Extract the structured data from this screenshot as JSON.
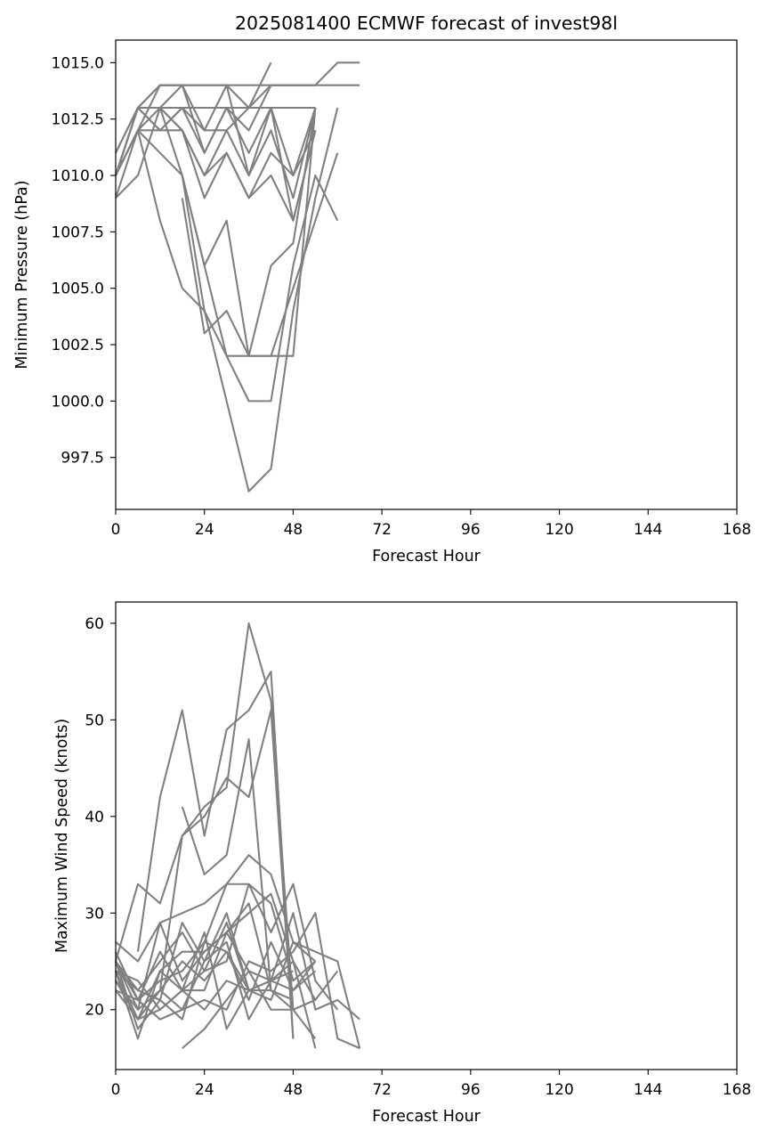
{
  "chart_data": [
    {
      "type": "line",
      "title": "2025081400 ECMWF forecast of invest98l",
      "xlabel": "Forecast Hour",
      "ylabel": "Minimum Pressure (hPa)",
      "xlim": [
        0,
        168
      ],
      "ylim": [
        995.2,
        1016.0
      ],
      "xticks": [
        0,
        24,
        48,
        72,
        96,
        120,
        144,
        168
      ],
      "xtick_labels": [
        "0",
        "24",
        "48",
        "72",
        "96",
        "120",
        "144",
        "168"
      ],
      "yticks": [
        997.5,
        1000.0,
        1002.5,
        1005.0,
        1007.5,
        1010.0,
        1012.5,
        1015.0
      ],
      "ytick_labels": [
        "997.5",
        "1000.0",
        "1002.5",
        "1005.0",
        "1007.5",
        "1010.0",
        "1012.5",
        "1015.0"
      ],
      "grid": false,
      "line_color": "#808080",
      "series": [
        {
          "x": [
            0,
            6,
            12,
            18,
            24,
            30,
            36,
            42,
            48,
            54
          ],
          "y": [
            1010,
            1013,
            1014,
            1014,
            1011,
            1013,
            1012,
            1014,
            1014,
            1014
          ]
        },
        {
          "x": [
            0,
            6,
            12,
            18,
            24,
            30,
            36,
            42,
            48,
            54,
            60,
            66
          ],
          "y": [
            1010,
            1013,
            1014,
            1014,
            1014,
            1014,
            1014,
            1014,
            1014,
            1014,
            1015,
            1015
          ]
        },
        {
          "x": [
            0,
            6,
            12,
            18,
            24,
            30,
            36,
            42,
            48,
            54,
            60,
            66
          ],
          "y": [
            1010,
            1012,
            1014,
            1014,
            1014,
            1014,
            1013,
            1014,
            1014,
            1014,
            1014,
            1014
          ]
        },
        {
          "x": [
            0,
            6,
            12,
            18,
            24,
            30,
            36,
            42,
            48,
            54
          ],
          "y": [
            1010,
            1013,
            1013,
            1014,
            1012,
            1014,
            1010,
            1013,
            1010,
            1013
          ]
        },
        {
          "x": [
            0,
            6,
            12,
            18,
            24,
            30,
            36,
            42,
            48,
            54
          ],
          "y": [
            1010,
            1013,
            1013,
            1013,
            1013,
            1013,
            1013,
            1013,
            1013,
            1013
          ]
        },
        {
          "x": [
            0,
            6,
            12,
            18,
            24,
            30,
            36,
            42,
            48,
            54
          ],
          "y": [
            1010,
            1012,
            1012,
            1012,
            1010,
            1012,
            1010,
            1012,
            1009,
            1013
          ]
        },
        {
          "x": [
            0,
            6,
            12,
            18,
            24,
            30,
            36,
            42,
            48,
            54
          ],
          "y": [
            1010,
            1013,
            1012,
            1013,
            1011,
            1013,
            1011,
            1013,
            1008,
            1012
          ]
        },
        {
          "x": [
            0,
            6,
            12,
            18,
            24,
            30,
            36,
            42,
            48,
            54
          ],
          "y": [
            1010,
            1012,
            1013,
            1012,
            1010,
            1011,
            1009,
            1011,
            1010,
            1012
          ]
        },
        {
          "x": [
            0,
            6,
            12,
            18,
            24,
            30,
            36,
            42,
            48,
            54
          ],
          "y": [
            1011,
            1013,
            1013,
            1012,
            1009,
            1011,
            1009,
            1010,
            1008,
            1012
          ]
        },
        {
          "x": [
            0,
            6,
            12,
            18,
            24,
            30,
            36,
            42
          ],
          "y": [
            1011,
            1013,
            1012,
            1013,
            1012,
            1012,
            1013,
            1015
          ]
        },
        {
          "x": [
            0,
            6,
            12,
            18,
            24,
            30,
            36,
            42,
            48,
            54,
            60
          ],
          "y": [
            1009,
            1010,
            1013,
            1010,
            1004,
            1002,
            1000,
            1000,
            1006,
            1010,
            1008
          ]
        },
        {
          "x": [
            0,
            6,
            12,
            18,
            24,
            30,
            36,
            42,
            48,
            54,
            60
          ],
          "y": [
            1009,
            1012,
            1008,
            1005,
            1004,
            1000,
            996,
            997,
            1004,
            1009,
            1013
          ]
        },
        {
          "x": [
            0,
            6,
            12,
            18,
            24,
            30,
            36,
            42,
            48,
            54,
            60
          ],
          "y": [
            1010,
            1012,
            1011,
            1010,
            1006,
            1002,
            1002,
            1002,
            1005,
            1008,
            1011
          ]
        },
        {
          "x": [
            18,
            24,
            30,
            36,
            42,
            48,
            54
          ],
          "y": [
            1009,
            1003,
            1004,
            1002,
            1006,
            1007,
            1013
          ]
        },
        {
          "x": [
            18,
            24,
            30,
            36,
            42,
            48,
            54
          ],
          "y": [
            1010,
            1006,
            1008,
            1002,
            1002,
            1002,
            1013
          ]
        }
      ]
    },
    {
      "type": "line",
      "title": "",
      "xlabel": "Forecast Hour",
      "ylabel": "Maximum Wind Speed (knots)",
      "xlim": [
        0,
        168
      ],
      "ylim": [
        13.8,
        62.2
      ],
      "xticks": [
        0,
        24,
        48,
        72,
        96,
        120,
        144,
        168
      ],
      "xtick_labels": [
        "0",
        "24",
        "48",
        "72",
        "96",
        "120",
        "144",
        "168"
      ],
      "yticks": [
        20,
        30,
        40,
        50,
        60
      ],
      "ytick_labels": [
        "20",
        "30",
        "40",
        "50",
        "60"
      ],
      "grid": false,
      "line_color": "#808080",
      "series": [
        {
          "x": [
            6,
            12,
            18,
            24,
            30,
            36,
            42,
            48
          ],
          "y": [
            26,
            42,
            51,
            38,
            49,
            51,
            55,
            17
          ]
        },
        {
          "x": [
            0,
            6,
            12,
            18,
            24,
            30,
            36,
            42,
            48
          ],
          "y": [
            24,
            19,
            22,
            38,
            41,
            43,
            60,
            52,
            20
          ]
        },
        {
          "x": [
            0,
            6,
            12,
            18,
            24,
            30,
            36,
            42,
            48
          ],
          "y": [
            25,
            33,
            31,
            38,
            40,
            44,
            42,
            51,
            17
          ]
        },
        {
          "x": [
            18,
            24,
            30,
            36,
            42,
            48
          ],
          "y": [
            41,
            34,
            36,
            48,
            22,
            21
          ]
        },
        {
          "x": [
            0,
            6,
            12,
            18,
            24,
            30,
            36,
            42,
            48,
            54,
            60
          ],
          "y": [
            27,
            25,
            29,
            30,
            31,
            33,
            33,
            28,
            33,
            23,
            20
          ]
        },
        {
          "x": [
            0,
            6,
            12,
            18,
            24,
            30,
            36,
            42,
            48,
            54,
            60,
            66
          ],
          "y": [
            25,
            21,
            23,
            24,
            27,
            33,
            36,
            34,
            27,
            26,
            25,
            16
          ]
        },
        {
          "x": [
            0,
            6,
            12,
            18,
            24,
            30,
            36,
            42,
            48,
            54,
            60
          ],
          "y": [
            23,
            20,
            29,
            23,
            26,
            28,
            30,
            32,
            25,
            21,
            24
          ]
        },
        {
          "x": [
            0,
            6,
            12,
            18,
            24,
            30,
            36,
            42
          ],
          "y": [
            22,
            19,
            24,
            26,
            26,
            28,
            31,
            22
          ]
        },
        {
          "x": [
            0,
            6,
            12,
            18,
            24,
            30,
            36,
            42,
            48,
            54
          ],
          "y": [
            25,
            22,
            25,
            28,
            24,
            25,
            33,
            31,
            23,
            25
          ]
        },
        {
          "x": [
            0,
            6,
            12,
            18,
            24,
            30,
            36
          ],
          "y": [
            24,
            17,
            24,
            22,
            28,
            18,
            22
          ]
        },
        {
          "x": [
            0,
            6,
            12,
            18,
            24,
            30,
            36,
            42,
            48,
            54,
            60,
            66
          ],
          "y": [
            23,
            19,
            20,
            22,
            24,
            29,
            22,
            23,
            30,
            20,
            21,
            19
          ]
        },
        {
          "x": [
            0,
            6,
            12,
            18,
            24,
            30,
            36,
            42,
            48,
            54
          ],
          "y": [
            25,
            18,
            21,
            19,
            27,
            26,
            21,
            27,
            22,
            25
          ]
        },
        {
          "x": [
            0,
            6,
            12,
            18,
            24,
            30,
            36,
            42,
            48,
            54
          ],
          "y": [
            26,
            21,
            26,
            22,
            20,
            23,
            22,
            22,
            20,
            21
          ]
        },
        {
          "x": [
            0,
            6,
            12,
            18,
            24,
            30,
            36,
            42,
            48,
            54
          ],
          "y": [
            24,
            22,
            21,
            29,
            25,
            27,
            19,
            23,
            25,
            16
          ]
        },
        {
          "x": [
            0,
            6,
            12,
            18,
            24,
            30,
            36,
            42,
            48,
            54,
            60,
            66
          ],
          "y": [
            22,
            21,
            19,
            20,
            21,
            20,
            25,
            24,
            26,
            30,
            17,
            16
          ]
        },
        {
          "x": [
            0,
            6,
            12,
            18,
            24,
            30,
            36,
            42,
            48,
            54
          ],
          "y": [
            25,
            20,
            22,
            20,
            25,
            30,
            22,
            21,
            27,
            25
          ]
        },
        {
          "x": [
            0,
            6,
            12,
            18,
            24,
            30,
            36,
            42,
            48,
            54
          ],
          "y": [
            24,
            23,
            20,
            22,
            22,
            28,
            24,
            20,
            20,
            17
          ]
        },
        {
          "x": [
            18,
            24,
            30,
            36,
            42,
            48,
            54
          ],
          "y": [
            16,
            18,
            21,
            24,
            23,
            22,
            24
          ]
        },
        {
          "x": [
            12,
            18,
            24,
            30,
            36,
            42,
            48
          ],
          "y": [
            22,
            25,
            23,
            26,
            22,
            23,
            24
          ]
        }
      ]
    }
  ]
}
